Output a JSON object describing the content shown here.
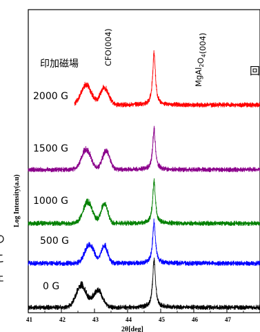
{
  "chart_data": {
    "type": "line",
    "title": "",
    "xlabel": "2θ[deg]",
    "ylabel": "Log Intensity(a.u)",
    "xlim": [
      41,
      48
    ],
    "x_ticks": [
      "41",
      "42",
      "43",
      "44",
      "45",
      "46",
      "47"
    ],
    "legend_title": "印加磁場",
    "peak_labels": [
      "CFO(004)",
      "MgAl₂O₄(004)"
    ],
    "grid": false,
    "series": [
      {
        "name": "2000 G",
        "color": "#ff0000",
        "offset": 4,
        "x_range": [
          42.4,
          48
        ],
        "peaks": [
          {
            "x": 42.75,
            "h": 0.45,
            "w": 0.22
          },
          {
            "x": 43.3,
            "h": 0.38,
            "w": 0.18
          },
          {
            "x": 44.8,
            "h": 1.2,
            "w": 0.05
          }
        ]
      },
      {
        "name": "1500 G",
        "color": "#8b008b",
        "offset": 3,
        "x_range": [
          41,
          48
        ],
        "peaks": [
          {
            "x": 42.75,
            "h": 0.45,
            "w": 0.2
          },
          {
            "x": 43.35,
            "h": 0.42,
            "w": 0.16
          },
          {
            "x": 44.8,
            "h": 0.9,
            "w": 0.05
          }
        ]
      },
      {
        "name": "1000 G",
        "color": "#008000",
        "offset": 2,
        "x_range": [
          41,
          48
        ],
        "peaks": [
          {
            "x": 42.8,
            "h": 0.48,
            "w": 0.2
          },
          {
            "x": 43.3,
            "h": 0.45,
            "w": 0.14
          },
          {
            "x": 44.8,
            "h": 0.95,
            "w": 0.05
          }
        ]
      },
      {
        "name": "500 G",
        "color": "#0000ff",
        "offset": 1,
        "x_range": [
          41,
          48
        ],
        "peaks": [
          {
            "x": 42.85,
            "h": 0.42,
            "w": 0.2
          },
          {
            "x": 43.3,
            "h": 0.4,
            "w": 0.14
          },
          {
            "x": 44.8,
            "h": 0.95,
            "w": 0.05
          }
        ]
      },
      {
        "name": "0 G",
        "color": "#000000",
        "offset": 0,
        "x_range": [
          41,
          48
        ],
        "peaks": [
          {
            "x": 42.6,
            "h": 0.5,
            "w": 0.22
          },
          {
            "x": 43.1,
            "h": 0.38,
            "w": 0.2
          },
          {
            "x": 44.8,
            "h": 1.1,
            "w": 0.05
          }
        ]
      }
    ],
    "side_text": {
      "top_right_char": "回",
      "left_edge_chars": [
        "の",
        "こ",
        "ェ"
      ]
    }
  }
}
